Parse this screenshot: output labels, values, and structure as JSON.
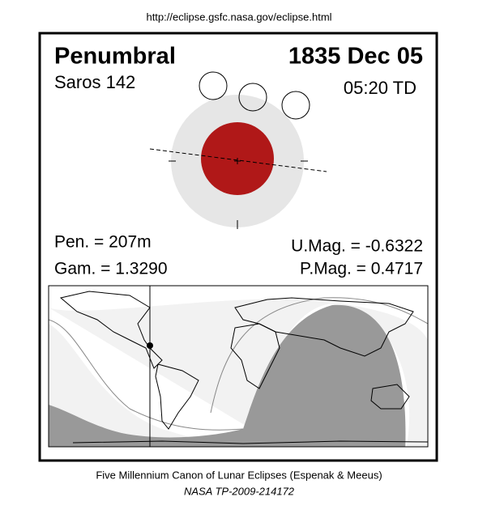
{
  "header": {
    "url": "http://eclipse.gsfc.nasa.gov/eclipse.html"
  },
  "eclipse": {
    "type": "Penumbral",
    "date": "1835 Dec 05",
    "saros": "Saros 142",
    "time": "05:20 TD"
  },
  "stats": {
    "pen": "Pen. = 207m",
    "gamma": "Gam. = 1.3290",
    "umag": "U.Mag. = -0.6322",
    "pmag": "P.Mag. = 0.4717"
  },
  "footer": {
    "line1": "Five Millennium Canon of Lunar Eclipses (Espenak & Meeus)",
    "line2": "NASA TP-2009-214172"
  }
}
